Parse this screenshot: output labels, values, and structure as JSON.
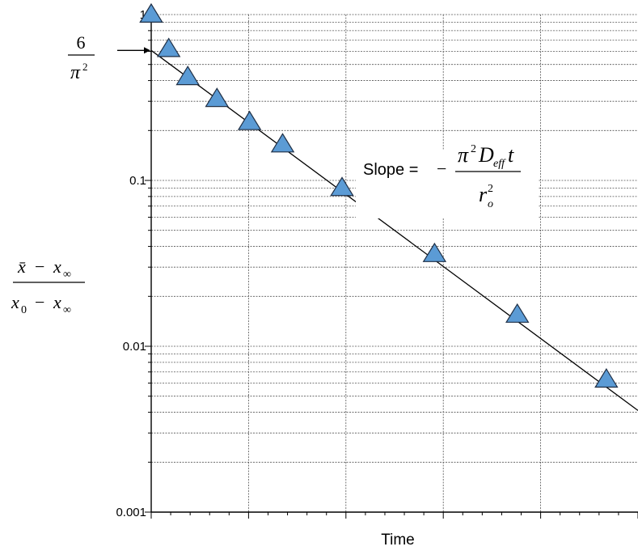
{
  "chart_data": {
    "type": "scatter",
    "title": "",
    "xlabel": "Time",
    "ylabel": {
      "numerator_left": "x̄",
      "numerator_op": "−",
      "numerator_right": "x",
      "numerator_right_sub": "∞",
      "denominator_left": "x",
      "denominator_left_sub": "0",
      "denominator_op": "−",
      "denominator_right": "x",
      "denominator_right_sub": "∞"
    },
    "y_scale": "log",
    "ylim": [
      0.001,
      1
    ],
    "xlim": [
      0,
      1
    ],
    "y_ticks": [
      {
        "value": 1,
        "label": "1"
      },
      {
        "value": 0.1,
        "label": "0.1"
      },
      {
        "value": 0.01,
        "label": "0.01"
      },
      {
        "value": 0.001,
        "label": "0.001"
      }
    ],
    "x_tick_count": 5,
    "x_minor_per_major": 5,
    "grid": true,
    "points": {
      "x": [
        0,
        0.036,
        0.075,
        0.135,
        0.202,
        0.27,
        0.392,
        0.582,
        0.752,
        0.935
      ],
      "y": [
        1.0,
        0.62,
        0.42,
        0.31,
        0.225,
        0.165,
        0.09,
        0.036,
        0.0155,
        0.0063
      ],
      "marker": "triangle",
      "color": "#5b9bd5"
    },
    "fit_line": {
      "x": [
        0,
        1
      ],
      "y": [
        0.608,
        0.0041
      ],
      "color": "#000000"
    },
    "annotations": {
      "intercept": {
        "numerator": "6",
        "denominator_base": "π",
        "denominator_exp": "2",
        "y": 0.608
      },
      "slope": {
        "label": "Slope = ",
        "sign": "−",
        "num_pi": "π",
        "num_pi_exp": "2",
        "num_D": "D",
        "num_D_sub": "eff",
        "num_t": "t",
        "den_r": "r",
        "den_r_sub": "o",
        "den_r_exp": "2"
      }
    }
  }
}
